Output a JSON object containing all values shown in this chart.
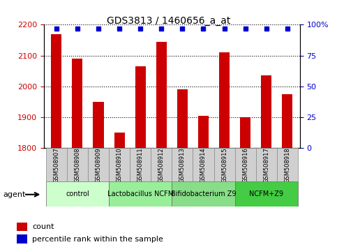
{
  "title": "GDS3813 / 1460656_a_at",
  "samples": [
    "GSM508907",
    "GSM508908",
    "GSM508909",
    "GSM508910",
    "GSM508911",
    "GSM508912",
    "GSM508913",
    "GSM508914",
    "GSM508915",
    "GSM508916",
    "GSM508917",
    "GSM508918"
  ],
  "counts": [
    2170,
    2090,
    1950,
    1850,
    2065,
    2145,
    1990,
    1905,
    2110,
    1900,
    2035,
    1975
  ],
  "percentile_ranks": [
    97,
    97,
    97,
    97,
    97,
    97,
    97,
    97,
    97,
    97,
    97,
    97
  ],
  "bar_color": "#cc0000",
  "dot_color": "#0000cc",
  "ylim_left": [
    1800,
    2200
  ],
  "ylim_right": [
    0,
    100
  ],
  "yticks_left": [
    1800,
    1900,
    2000,
    2100,
    2200
  ],
  "yticks_right": [
    0,
    25,
    50,
    75,
    100
  ],
  "groups": [
    {
      "label": "control",
      "start": 0,
      "end": 2,
      "color": "#ccffcc"
    },
    {
      "label": "Lactobacillus NCFM",
      "start": 3,
      "end": 5,
      "color": "#99ee99"
    },
    {
      "label": "Bifidobacterium Z9",
      "start": 6,
      "end": 8,
      "color": "#88dd88"
    },
    {
      "label": "NCFM+Z9",
      "start": 9,
      "end": 11,
      "color": "#44cc44"
    }
  ],
  "legend_count_color": "#cc0000",
  "legend_percentile_color": "#0000cc",
  "bar_width": 0.5,
  "grid_color": "#000000",
  "bg_color": "#ffffff",
  "plot_bg_color": "#ffffff",
  "tick_label_color_left": "#cc0000",
  "tick_label_color_right": "#0000cc"
}
